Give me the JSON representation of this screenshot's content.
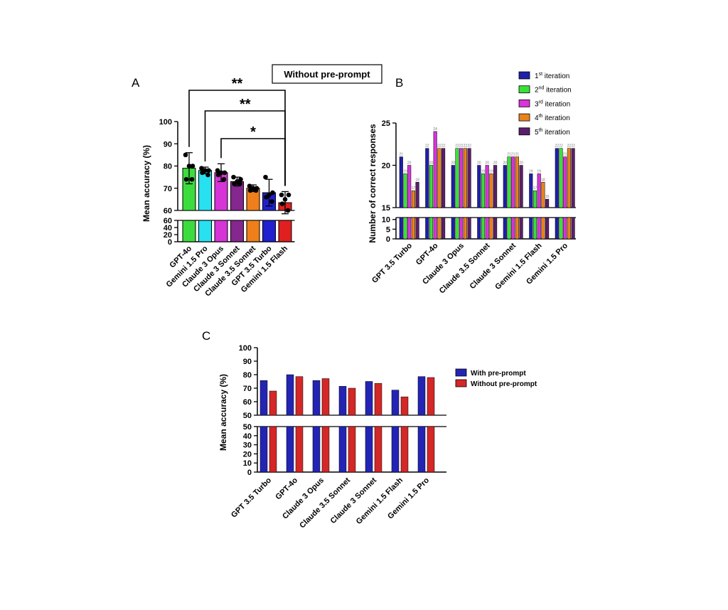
{
  "figure_title": "Without pre-prompt",
  "panels": {
    "a": "A",
    "b": "B",
    "c": "C"
  },
  "colors": {
    "gpt4o": "#3ddc3d",
    "gemini_pro": "#27e0f0",
    "opus": "#d634d6",
    "sonnet3": "#86268f",
    "sonnet35": "#ef7f1a",
    "turbo": "#2020d0",
    "flash": "#e02020",
    "iter1": "#1f1fa8",
    "iter2": "#3ae03a",
    "iter3": "#d933d9",
    "iter4": "#e8821c",
    "iter5": "#5a1f6a",
    "with": "#2424b4",
    "without": "#d42727"
  },
  "chart_data": [
    {
      "panel": "A",
      "type": "bar",
      "title": "Without pre-prompt",
      "ylabel": "Mean accuracy (%)",
      "categories": [
        "GPT-4o",
        "Gemini 1.5 Pro",
        "Claude 3 Opus",
        "Claude 3 Sonnet",
        "Claude 3.5 Sonnet",
        "GPT 3.5 Turbo",
        "Gemini 1.5 Flash"
      ],
      "values": [
        79,
        78,
        77,
        73,
        70,
        68,
        63.5
      ],
      "error": [
        7,
        1.5,
        4,
        2,
        1.5,
        6,
        5
      ],
      "points": [
        [
          85,
          80,
          80,
          74,
          74
        ],
        [
          79,
          78,
          78,
          77,
          76
        ],
        [
          78,
          77,
          77,
          76,
          74
        ],
        [
          75,
          74,
          73,
          72,
          72
        ],
        [
          71,
          70,
          70,
          69,
          69
        ],
        [
          75,
          68,
          67,
          66,
          64
        ],
        [
          67,
          67,
          65,
          63,
          60
        ]
      ],
      "yticks_upper": [
        "60",
        "70",
        "80",
        "90",
        "100"
      ],
      "yticks_lower": [
        "0",
        "20",
        "40",
        "60"
      ],
      "ylim_upper": [
        60,
        100
      ],
      "ylim_lower": [
        0,
        60
      ],
      "significance": [
        {
          "from": "GPT-4o",
          "to": "Gemini 1.5 Flash",
          "label": "**"
        },
        {
          "from": "Gemini 1.5 Pro",
          "to": "Gemini 1.5 Flash",
          "label": "**"
        },
        {
          "from": "Claude 3 Opus",
          "to": "Gemini 1.5 Flash",
          "label": "*"
        }
      ]
    },
    {
      "panel": "B",
      "type": "bar",
      "ylabel": "Number of correct  responses",
      "categories": [
        "GPT 3.5 Turbo",
        "GPT-4o",
        "Claude 3 Opus",
        "Claude 3.5 Sonnet",
        "Claude 3 Sonnet",
        "Gemini 1.5 Flash",
        "Gemini 1.5 Pro"
      ],
      "legend": [
        "1st iteration",
        "2nd iteration",
        "3rd iteration",
        "4th iteration",
        "5th iteration"
      ],
      "series": [
        {
          "name": "1st iteration",
          "values": [
            21,
            22,
            20,
            20,
            20,
            19,
            22
          ]
        },
        {
          "name": "2nd iteration",
          "values": [
            19,
            20,
            22,
            19,
            21,
            17,
            22
          ]
        },
        {
          "name": "3rd iteration",
          "values": [
            20,
            24,
            22,
            20,
            21,
            19,
            21
          ]
        },
        {
          "name": "4th iteration",
          "values": [
            17,
            22,
            22,
            19,
            21,
            18,
            22
          ]
        },
        {
          "name": "5th iteration",
          "values": [
            18,
            22,
            22,
            20,
            20,
            16,
            22
          ]
        }
      ],
      "yticks_upper": [
        "15",
        "20",
        "25"
      ],
      "yticks_lower": [
        "0",
        "5",
        "10"
      ],
      "ylim_upper": [
        15,
        25
      ],
      "ylim_lower": [
        0,
        11
      ]
    },
    {
      "panel": "C",
      "type": "bar",
      "ylabel": "Mean accuracy (%)",
      "categories": [
        "GPT 3.5 Turbo",
        "GPT-4o",
        "Claude 3 Opus",
        "Claude 3.5 Sonnet",
        "Claude 3 Sonnet",
        "Gemini 1.5 Flash",
        "Gemini 1.5 Pro"
      ],
      "legend": [
        "With pre-prompt",
        "Without pre-prompt"
      ],
      "series": [
        {
          "name": "With pre-prompt",
          "values": [
            75.7,
            80,
            75.7,
            71.4,
            75,
            68.6,
            78.6
          ]
        },
        {
          "name": "Without pre-prompt",
          "values": [
            67.9,
            78.6,
            77.1,
            70,
            73.6,
            63.6,
            77.9
          ]
        }
      ],
      "yticks_upper": [
        "50",
        "60",
        "70",
        "80",
        "90",
        "100"
      ],
      "yticks_lower": [
        "0",
        "10",
        "20",
        "30",
        "40",
        "50"
      ],
      "ylim_upper": [
        50,
        100
      ],
      "ylim_lower": [
        0,
        50
      ]
    }
  ]
}
